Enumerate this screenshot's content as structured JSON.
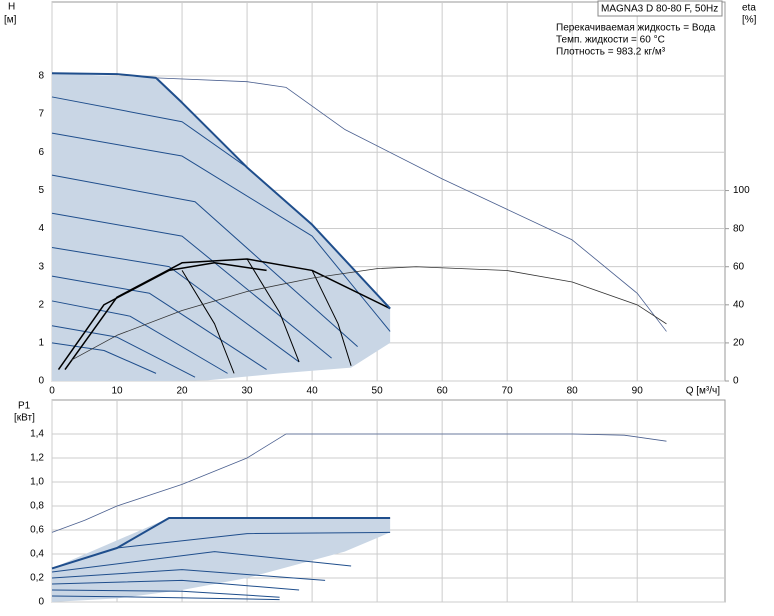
{
  "chart_data": [
    {
      "type": "line",
      "y_label": "H",
      "y_unit": "[м]",
      "y2_label": "eta",
      "y2_unit": "[%]",
      "title": "MAGNA3 D 80-80 F, 50Hz",
      "annotations": [
        "Перекачиваемая жидкость = Вода",
        "Темп. жидкости = 60 °C",
        "Плотность = 983.2 кг/м³"
      ],
      "x_label": "Q [м³/ч]",
      "xlim": [
        0,
        103.5
      ],
      "xticks": [
        0,
        10,
        20,
        30,
        40,
        50,
        60,
        70,
        80,
        90
      ],
      "ylim": [
        0,
        9.94
      ],
      "yticks": [
        0,
        1,
        2,
        3,
        4,
        5,
        6,
        7,
        8
      ],
      "y2lim": [
        0,
        199
      ],
      "y2ticks": [
        0,
        20,
        40,
        60,
        80,
        100
      ],
      "grid": true,
      "series": [
        {
          "type": "area",
          "color": "#c9d6e5",
          "x": [
            0,
            16,
            20,
            30,
            40,
            52,
            52,
            46,
            35,
            24,
            18,
            0
          ],
          "values": [
            8.07,
            7.95,
            7.3,
            5.6,
            4.1,
            1.9,
            1.0,
            0.35,
            0.2,
            0.02,
            0,
            0
          ]
        },
        {
          "color": "#1f4e8c",
          "line_width": 1,
          "x": [
            0,
            8,
            16
          ],
          "values": [
            1.0,
            0.8,
            0.2
          ]
        },
        {
          "color": "#1f4e8c",
          "line_width": 1,
          "x": [
            0,
            10,
            22
          ],
          "values": [
            1.45,
            1.15,
            0.1
          ]
        },
        {
          "color": "#1f4e8c",
          "line_width": 1,
          "x": [
            0,
            12,
            27
          ],
          "values": [
            2.1,
            1.7,
            0.2
          ]
        },
        {
          "color": "#1f4e8c",
          "line_width": 1,
          "x": [
            0,
            15,
            33
          ],
          "values": [
            2.75,
            2.3,
            0.3
          ]
        },
        {
          "color": "#1f4e8c",
          "line_width": 1,
          "x": [
            0,
            18,
            38
          ],
          "values": [
            3.5,
            3.0,
            0.5
          ]
        },
        {
          "color": "#1f4e8c",
          "line_width": 1,
          "x": [
            0,
            20,
            43
          ],
          "values": [
            4.4,
            3.8,
            0.6
          ]
        },
        {
          "color": "#1f4e8c",
          "line_width": 1,
          "x": [
            0,
            22,
            47
          ],
          "values": [
            5.4,
            4.7,
            0.9
          ]
        },
        {
          "color": "#1f4e8c",
          "line_width": 1,
          "x": [
            0,
            20,
            40,
            52
          ],
          "values": [
            6.5,
            5.9,
            3.8,
            1.3
          ]
        },
        {
          "color": "#1f4e8c",
          "line_width": 1,
          "x": [
            0,
            20,
            30
          ],
          "values": [
            7.45,
            6.8,
            5.6
          ]
        },
        {
          "color": "#000000",
          "line_width": 1.5,
          "x": [
            2,
            10,
            20,
            30,
            40,
            52
          ],
          "values": [
            0.3,
            2.2,
            3.1,
            3.2,
            2.9,
            1.9
          ]
        },
        {
          "color": "#000000",
          "line_width": 1.5,
          "x": [
            1,
            8,
            18,
            25,
            33
          ],
          "values": [
            0.3,
            2.0,
            2.9,
            3.1,
            2.9
          ]
        },
        {
          "color": "#000000",
          "line_width": 1,
          "x": [
            20,
            25,
            28
          ],
          "values": [
            2.9,
            1.5,
            0.2
          ]
        },
        {
          "color": "#000000",
          "line_width": 1,
          "x": [
            30,
            35,
            38
          ],
          "values": [
            3.2,
            1.8,
            0.5
          ]
        },
        {
          "color": "#000000",
          "line_width": 1,
          "x": [
            40,
            44,
            46
          ],
          "values": [
            2.9,
            1.5,
            0.4
          ]
        },
        {
          "color": "#1f4e8c",
          "line_width": 2,
          "x": [
            0,
            10,
            16,
            20,
            30,
            40,
            52
          ],
          "values": [
            8.07,
            8.05,
            7.95,
            7.3,
            5.6,
            4.1,
            1.9
          ]
        },
        {
          "color": "#4a5f8f",
          "line_width": 0.8,
          "x": [
            16,
            30,
            36,
            45,
            60,
            70,
            80,
            90,
            94.5
          ],
          "values": [
            7.95,
            7.85,
            7.7,
            6.6,
            5.3,
            4.5,
            3.7,
            2.3,
            1.3
          ]
        },
        {
          "color": "#333333",
          "line_width": 0.8,
          "axis": "y2",
          "x": [
            3,
            10,
            20,
            30,
            40,
            50,
            56,
            70,
            80,
            90,
            94.5
          ],
          "values": [
            11,
            24,
            37,
            47,
            54,
            59,
            60,
            58,
            52,
            40,
            30
          ]
        }
      ]
    },
    {
      "type": "line",
      "y_label": "P1",
      "y_unit": "[кВт]",
      "xlim": [
        0,
        103.5
      ],
      "xticks": [
        0,
        10,
        20,
        30,
        40,
        50,
        60,
        70,
        80,
        90
      ],
      "ylim": [
        0,
        1.683
      ],
      "yticks": [
        0,
        {
          "value": 0.2,
          "label": "0,2"
        },
        {
          "value": 0.4,
          "label": "0,4"
        },
        {
          "value": 0.6,
          "label": "0,6"
        },
        {
          "value": 0.8,
          "label": "0,8"
        },
        {
          "value": 1.0,
          "label": "1,0"
        },
        {
          "value": 1.2,
          "label": "1,2"
        },
        {
          "value": 1.4,
          "label": "1,4"
        }
      ],
      "grid": true,
      "series": [
        {
          "type": "area",
          "color": "#c9d6e5",
          "x": [
            0,
            18,
            52,
            52,
            45,
            30,
            20,
            10,
            0
          ],
          "values": [
            0.28,
            0.7,
            0.7,
            0.58,
            0.42,
            0.2,
            0.1,
            0.03,
            0
          ]
        },
        {
          "color": "#1f4e8c",
          "line_width": 1,
          "x": [
            0,
            15,
            35
          ],
          "values": [
            0.05,
            0.04,
            0.02
          ]
        },
        {
          "color": "#1f4e8c",
          "line_width": 1,
          "x": [
            0,
            20,
            35
          ],
          "values": [
            0.1,
            0.09,
            0.04
          ]
        },
        {
          "color": "#1f4e8c",
          "line_width": 1,
          "x": [
            0,
            20,
            38
          ],
          "values": [
            0.15,
            0.18,
            0.1
          ]
        },
        {
          "color": "#1f4e8c",
          "line_width": 1,
          "x": [
            0,
            20,
            42
          ],
          "values": [
            0.2,
            0.27,
            0.18
          ]
        },
        {
          "color": "#1f4e8c",
          "line_width": 1,
          "x": [
            0,
            25,
            46
          ],
          "values": [
            0.25,
            0.42,
            0.3
          ]
        },
        {
          "color": "#1f4e8c",
          "line_width": 1,
          "x": [
            10,
            30,
            52
          ],
          "values": [
            0.45,
            0.57,
            0.58
          ]
        },
        {
          "color": "#1f4e8c",
          "line_width": 2,
          "x": [
            0,
            10,
            18,
            52
          ],
          "values": [
            0.28,
            0.45,
            0.7,
            0.7
          ]
        },
        {
          "color": "#4a5f8f",
          "line_width": 0.8,
          "x": [
            0,
            5,
            10,
            20,
            30,
            36,
            60,
            80,
            88,
            94.5
          ],
          "values": [
            0.58,
            0.68,
            0.8,
            0.98,
            1.2,
            1.4,
            1.4,
            1.4,
            1.39,
            1.34
          ]
        }
      ]
    }
  ]
}
